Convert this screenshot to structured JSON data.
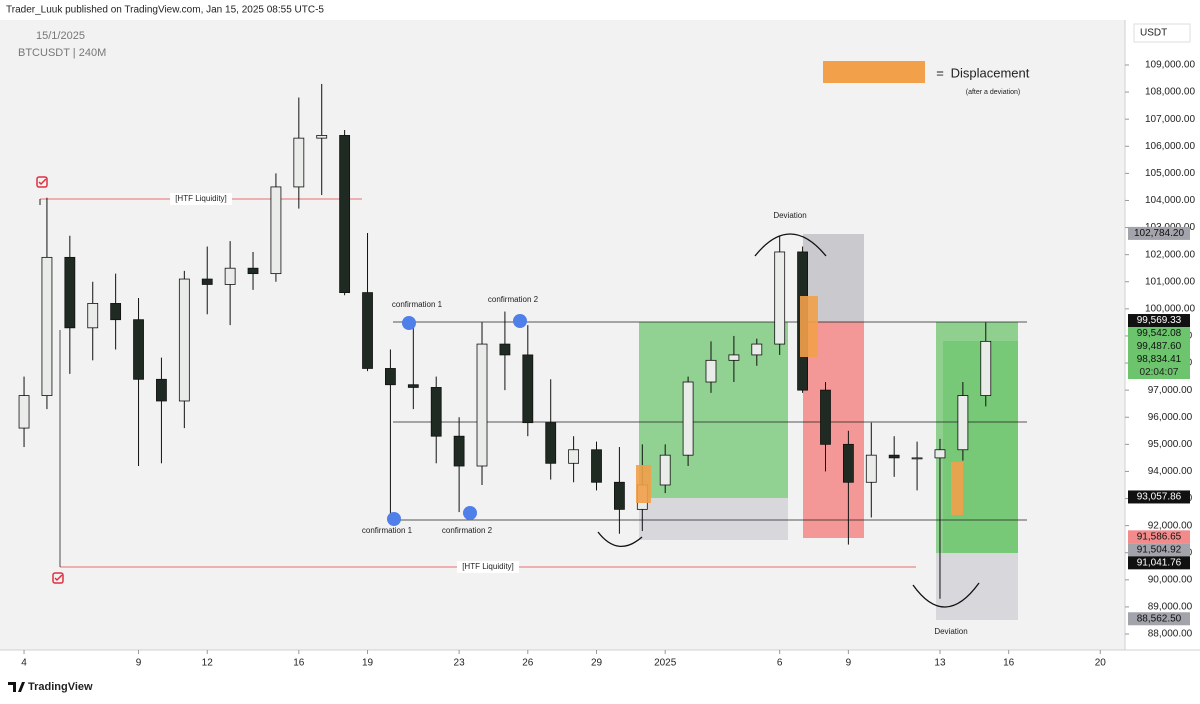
{
  "header": "Trader_Luuk published on TradingView.com, Jan 15, 2025 08:55 UTC-5",
  "footer": "TradingView",
  "annotations": {
    "date": "15/1/2025",
    "symbol": "BTCUSDT | 240M",
    "currency": "USDT",
    "legend_equals": "=",
    "legend_label": "Displacement",
    "legend_note": "(after a deviation)",
    "htf_liquidity": [
      "[HTF Liquidity]",
      "[HTF Liquidity]"
    ],
    "confirmations": [
      "confirmation 1",
      "confirmation 2",
      "confirmation 1",
      "confirmation 2"
    ],
    "deviations": [
      "Deviation",
      "Deviation"
    ]
  },
  "chart_data": {
    "type": "candlestick",
    "up_color": "#e9ece9",
    "down_color": "#1f2a22",
    "x": [
      4,
      5,
      6,
      7,
      8,
      9,
      10,
      11,
      12,
      13,
      14,
      15,
      16,
      17,
      18,
      19,
      20,
      21,
      22,
      23,
      24,
      25,
      26,
      27,
      28,
      29,
      30,
      31,
      32,
      33,
      34,
      35,
      36,
      37,
      38,
      39,
      40,
      41,
      42,
      43,
      44,
      45,
      46
    ],
    "open": [
      95600,
      96800,
      101900,
      99300,
      100200,
      99600,
      97400,
      96600,
      101100,
      100900,
      101500,
      101300,
      104500,
      106300,
      106400,
      100600,
      97800,
      97200,
      97100,
      95300,
      94200,
      98700,
      98300,
      95800,
      94300,
      94800,
      93600,
      92600,
      93500,
      94600,
      97300,
      98100,
      98300,
      98700,
      102100,
      97000,
      95000,
      93600,
      94600,
      94500,
      94500,
      94800,
      96800
    ],
    "high": [
      97500,
      104100,
      102700,
      101000,
      101300,
      100400,
      98200,
      101400,
      102300,
      102500,
      102100,
      105000,
      107800,
      108300,
      106600,
      102800,
      98500,
      99300,
      97500,
      96000,
      99500,
      99900,
      99400,
      97400,
      95300,
      95100,
      94900,
      95000,
      95000,
      97500,
      98800,
      99000,
      98900,
      102700,
      102300,
      97300,
      95500,
      95800,
      95300,
      95100,
      95200,
      97300,
      99500
    ],
    "low": [
      94900,
      96300,
      97600,
      98100,
      98500,
      94200,
      94300,
      95600,
      99800,
      99400,
      100700,
      101000,
      103700,
      104200,
      100500,
      97700,
      92200,
      96300,
      94300,
      92500,
      93500,
      97000,
      95300,
      93700,
      93600,
      93300,
      91700,
      91800,
      93200,
      94200,
      96900,
      97300,
      97900,
      98300,
      96900,
      94000,
      91300,
      92300,
      93800,
      93300,
      89300,
      94400,
      96400
    ],
    "close": [
      96800,
      101900,
      99300,
      100200,
      99600,
      97400,
      96600,
      101100,
      100900,
      101500,
      101300,
      104500,
      106300,
      106400,
      100600,
      97800,
      97200,
      97100,
      95300,
      94200,
      98700,
      98300,
      95800,
      94300,
      94800,
      93600,
      92600,
      93500,
      94600,
      97300,
      98100,
      98300,
      98700,
      102100,
      97000,
      95000,
      93600,
      94600,
      94500,
      94500,
      94800,
      96800,
      98800
    ],
    "xlim": [
      2.95,
      52.08
    ],
    "xticks": [
      4,
      9,
      12,
      16,
      19,
      23,
      26,
      29,
      {
        "value": 32,
        "label": "2025"
      },
      {
        "value": 37,
        "label": "6"
      },
      {
        "value": 40,
        "label": "9"
      },
      {
        "value": 44,
        "label": "13"
      },
      {
        "value": 47,
        "label": "16"
      },
      {
        "value": 51,
        "label": "20"
      }
    ],
    "ylim": [
      87410,
      110660
    ],
    "yticks": [
      {
        "value": 88000,
        "label": "88,000.00"
      },
      {
        "value": 89000,
        "label": "89,000.00"
      },
      {
        "value": 90000,
        "label": "90,000.00"
      },
      {
        "value": 91000,
        "label": "91,000.00"
      },
      {
        "value": 92000,
        "label": "92,000.00"
      },
      {
        "value": 93000,
        "label": "93,000.00"
      },
      {
        "value": 94000,
        "label": "94,000.00"
      },
      {
        "value": 95000,
        "label": "95,000.00"
      },
      {
        "value": 96000,
        "label": "96,000.00"
      },
      {
        "value": 97000,
        "label": "97,000.00"
      },
      {
        "value": 98000,
        "label": "98,000.00"
      },
      {
        "value": 99000,
        "label": "99,000.00"
      },
      {
        "value": 100000,
        "label": "100,000.00"
      },
      {
        "value": 101000,
        "label": "101,000.00"
      },
      {
        "value": 102000,
        "label": "102,000.00"
      },
      {
        "value": 103000,
        "label": "103,000.00"
      },
      {
        "value": 104000,
        "label": "104,000.00"
      },
      {
        "value": 105000,
        "label": "105,000.00"
      },
      {
        "value": 106000,
        "label": "106,000.00"
      },
      {
        "value": 107000,
        "label": "107,000.00"
      },
      {
        "value": 108000,
        "label": "108,000.00"
      },
      {
        "value": 109000,
        "label": "109,000.00"
      }
    ],
    "price_tags": [
      {
        "value": 102784.2,
        "label": "102,784.20",
        "color": "#a3a3ab"
      },
      {
        "value": 99569.33,
        "label": "99,569.33",
        "color": "#111111"
      },
      {
        "value": 99542.08,
        "label": "99,542.08",
        "color": "#6cc46c"
      },
      {
        "value": 99487.6,
        "label": "99,487.60",
        "color": "#6cc46c"
      },
      {
        "value": 98834.41,
        "label": "98,834.41",
        "color": "#6cc46c"
      },
      {
        "value": 93057.86,
        "label": "93,057.86",
        "color": "#111111"
      },
      {
        "value": 91586.65,
        "label": "91,586.65",
        "color": "#f28c8c"
      },
      {
        "value": 91504.92,
        "label": "91,504.92",
        "color": "#a3a3ab"
      },
      {
        "value": 91041.76,
        "label": "91,041.76",
        "color": "#111111"
      },
      {
        "value": 88562.5,
        "label": "88,562.50",
        "color": "#a3a3ab"
      }
    ],
    "countdown": "02:04:07"
  }
}
